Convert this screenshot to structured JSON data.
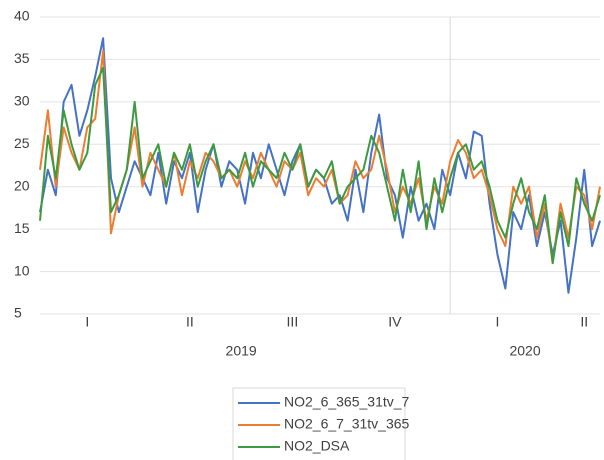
{
  "chart_data": {
    "type": "line",
    "ylim": [
      5,
      40
    ],
    "yticks": [
      5,
      10,
      15,
      20,
      25,
      30,
      35,
      40
    ],
    "grid": true,
    "categories": [
      null,
      null,
      null,
      null,
      null,
      null,
      "I",
      null,
      null,
      null,
      null,
      null,
      null,
      null,
      null,
      null,
      null,
      null,
      null,
      "II",
      null,
      null,
      null,
      null,
      null,
      null,
      null,
      null,
      null,
      null,
      null,
      null,
      "III",
      null,
      null,
      null,
      null,
      null,
      null,
      null,
      null,
      null,
      null,
      null,
      null,
      "IV",
      null,
      null,
      null,
      null,
      null,
      null,
      null,
      null,
      null,
      null,
      null,
      null,
      "I",
      null,
      null,
      null,
      null,
      null,
      null,
      null,
      null,
      null,
      null,
      "II",
      null,
      null
    ],
    "groups": [
      {
        "label": "2019",
        "start": 0,
        "end": 51
      },
      {
        "label": "2020",
        "start": 52,
        "end": 71
      }
    ],
    "legend": "bottom",
    "series": [
      {
        "name": "NO2_6_365_31tv_7",
        "color": "#4472c4",
        "values": [
          17,
          22,
          19,
          30,
          32,
          26,
          29,
          33,
          37.5,
          21,
          17,
          20,
          23,
          21,
          19,
          24,
          18,
          23,
          21,
          24,
          17,
          22,
          25,
          20,
          23,
          22,
          18,
          24,
          21,
          25,
          22,
          19,
          23,
          25,
          20,
          22,
          21,
          18,
          19,
          16,
          22,
          17,
          24,
          28.5,
          21,
          19,
          14,
          20,
          16,
          18,
          15,
          22,
          19,
          24,
          21,
          26.5,
          26,
          18,
          12,
          8,
          17,
          15,
          19,
          13,
          17,
          12,
          16,
          7.5,
          14,
          22,
          13,
          16
        ]
      },
      {
        "name": "NO2_6_7_31tv_365",
        "color": "#ed7d31",
        "values": [
          22,
          29,
          20,
          27,
          24,
          22,
          27,
          28,
          36,
          14.5,
          19,
          22,
          27,
          20,
          24,
          22,
          20,
          24,
          19,
          23,
          21,
          24,
          23,
          21,
          22,
          20,
          23,
          21,
          24,
          22,
          20,
          23,
          22,
          24,
          19,
          21,
          20,
          22,
          18,
          19,
          23,
          21,
          22,
          26,
          22,
          17,
          20,
          18,
          21,
          16,
          20,
          18,
          23,
          25.5,
          24,
          21,
          22,
          19,
          15,
          13,
          20,
          18,
          20,
          14,
          18,
          11,
          18,
          14,
          20,
          19,
          15,
          20
        ]
      },
      {
        "name": "NO2_DSA",
        "color": "#3c9a3f",
        "values": [
          16,
          26,
          21,
          29,
          25,
          22,
          24,
          32,
          34,
          17,
          19,
          22,
          30,
          21,
          23,
          25,
          20,
          24,
          22,
          25,
          20,
          23,
          25,
          21,
          22,
          21,
          24,
          20,
          23,
          22,
          21,
          24,
          22,
          25,
          20,
          22,
          21,
          23,
          18,
          20,
          21,
          22,
          26,
          24,
          20,
          16,
          22,
          17,
          23,
          15,
          21,
          17,
          21,
          24,
          25,
          22,
          23,
          20,
          16,
          14,
          18,
          21,
          17,
          15,
          19,
          11,
          17,
          13,
          21,
          18,
          16,
          19
        ]
      }
    ]
  }
}
